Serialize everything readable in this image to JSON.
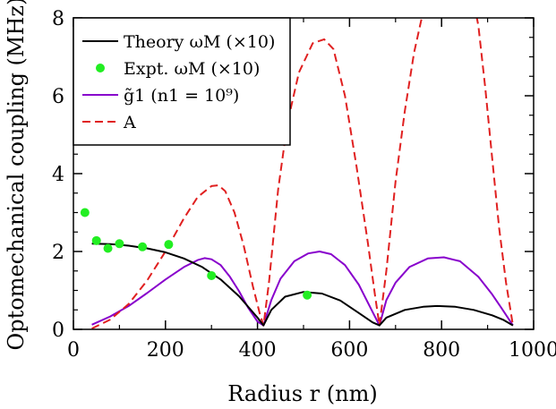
{
  "chart_data": {
    "type": "line",
    "xlabel": "Radius r (nm)",
    "ylabel": "Optomechanical coupling (MHz)",
    "xlim": [
      0,
      1000
    ],
    "ylim": [
      0,
      8
    ],
    "xticks": [
      0,
      200,
      400,
      600,
      800,
      1000
    ],
    "yticks": [
      0,
      2,
      4,
      6,
      8
    ],
    "xtick_labels": [
      "0",
      "200",
      "400",
      "600",
      "800",
      "1000"
    ],
    "ytick_labels": [
      "0",
      "2",
      "4",
      "6",
      "8"
    ],
    "grid": false,
    "legend_position": "top-left",
    "series": [
      {
        "name": "Theory ωM (×10)",
        "style": "solid",
        "color": "#000000",
        "x": [
          40,
          80,
          120,
          160,
          200,
          240,
          280,
          320,
          360,
          400,
          413,
          430,
          460,
          500,
          540,
          580,
          620,
          650,
          665,
          680,
          720,
          760,
          790,
          830,
          870,
          910,
          935,
          955
        ],
        "y": [
          2.2,
          2.19,
          2.15,
          2.08,
          1.98,
          1.82,
          1.6,
          1.28,
          0.85,
          0.3,
          0.1,
          0.5,
          0.84,
          0.96,
          0.92,
          0.74,
          0.42,
          0.18,
          0.1,
          0.3,
          0.5,
          0.58,
          0.6,
          0.58,
          0.5,
          0.36,
          0.24,
          0.1
        ]
      },
      {
        "name": "Expt. ωM (×10)",
        "style": "markers",
        "color": "#22ee22",
        "x": [
          25,
          50,
          75,
          100,
          150,
          207,
          300,
          508
        ],
        "y": [
          3.0,
          2.28,
          2.08,
          2.2,
          2.12,
          2.18,
          1.38,
          0.88
        ]
      },
      {
        "name": "g̃1 (n1 = 10⁹)",
        "style": "solid",
        "color": "#8800cc",
        "x": [
          40,
          80,
          120,
          160,
          200,
          240,
          270,
          285,
          300,
          320,
          340,
          360,
          380,
          400,
          413,
          430,
          450,
          480,
          510,
          535,
          560,
          590,
          620,
          650,
          665,
          680,
          700,
          730,
          770,
          805,
          840,
          880,
          910,
          930,
          955
        ],
        "y": [
          0.12,
          0.33,
          0.6,
          0.93,
          1.28,
          1.6,
          1.78,
          1.83,
          1.8,
          1.65,
          1.35,
          0.98,
          0.55,
          0.2,
          0.1,
          0.75,
          1.3,
          1.75,
          1.95,
          2.0,
          1.93,
          1.65,
          1.15,
          0.45,
          0.1,
          0.75,
          1.2,
          1.6,
          1.82,
          1.85,
          1.75,
          1.35,
          0.9,
          0.55,
          0.1
        ]
      },
      {
        "name": "A",
        "style": "dashed",
        "color": "#e02020",
        "x": [
          40,
          80,
          120,
          160,
          200,
          240,
          270,
          300,
          315,
          330,
          350,
          370,
          390,
          405,
          413,
          425,
          445,
          465,
          490,
          520,
          545,
          565,
          590,
          615,
          640,
          655,
          665,
          680,
          700,
          720,
          740,
          755,
          765,
          870,
          880,
          895,
          910,
          925,
          940,
          955
        ],
        "y": [
          0.02,
          0.25,
          0.65,
          1.25,
          2.0,
          2.85,
          3.4,
          3.68,
          3.7,
          3.55,
          3.0,
          2.15,
          1.1,
          0.4,
          0.1,
          1.2,
          3.6,
          5.3,
          6.6,
          7.35,
          7.45,
          7.2,
          6.0,
          4.2,
          2.2,
          0.9,
          0.1,
          1.5,
          3.8,
          5.6,
          7.1,
          7.9,
          8.4,
          8.4,
          7.8,
          6.2,
          4.4,
          2.6,
          1.2,
          0.1
        ]
      }
    ]
  }
}
